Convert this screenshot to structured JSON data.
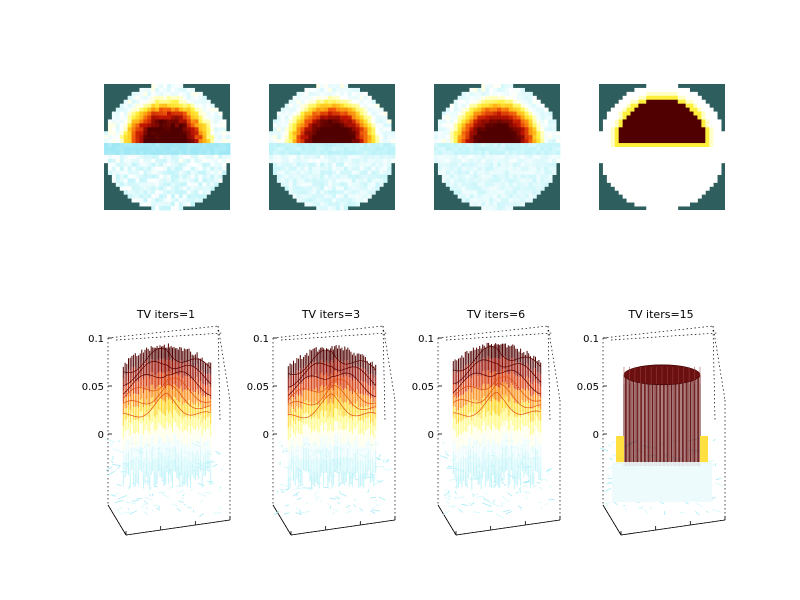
{
  "chart_data": [
    {
      "type": "heatmap",
      "title": "",
      "grid_cells": 32,
      "colormap": [
        "#4a7f7f",
        "#c8f4f6",
        "#ffffff",
        "#ffff80",
        "#ffc800",
        "#ff6000",
        "#c80000",
        "#500000"
      ],
      "images": [
        {
          "tv_iters": 1,
          "artifact_band": 0.85,
          "noise": 0.35,
          "sharpness": 0.25
        },
        {
          "tv_iters": 3,
          "artifact_band": 0.25,
          "noise": 0.25,
          "sharpness": 0.4
        },
        {
          "tv_iters": 6,
          "artifact_band": 0.15,
          "noise": 0.2,
          "sharpness": 0.5
        },
        {
          "tv_iters": 15,
          "artifact_band": 0.0,
          "noise": 0.0,
          "sharpness": 1.0
        }
      ],
      "background_color": "#2e5e5e"
    },
    {
      "type": "surface",
      "panels": [
        {
          "title": "TV iters=1",
          "tv_iters": 1,
          "peak": 0.092,
          "base_min": -0.028
        },
        {
          "title": "TV iters=3",
          "tv_iters": 3,
          "peak": 0.09,
          "base_min": -0.022
        },
        {
          "title": "TV iters=6",
          "tv_iters": 6,
          "peak": 0.094,
          "base_min": -0.02
        },
        {
          "title": "TV iters=15",
          "tv_iters": 15,
          "peak": 0.07,
          "base_min": -0.006
        }
      ],
      "zticks": [
        "0.1",
        "0.05",
        "0"
      ],
      "zlim": [
        -0.03,
        0.1
      ],
      "grid": true
    }
  ]
}
